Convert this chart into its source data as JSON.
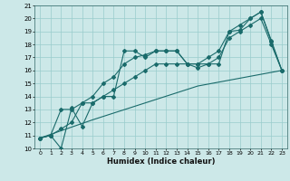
{
  "title": "",
  "xlabel": "Humidex (Indice chaleur)",
  "xlim": [
    -0.5,
    23.5
  ],
  "ylim": [
    10,
    21
  ],
  "xticks": [
    0,
    1,
    2,
    3,
    4,
    5,
    6,
    7,
    8,
    9,
    10,
    11,
    12,
    13,
    14,
    15,
    16,
    17,
    18,
    19,
    20,
    21,
    22,
    23
  ],
  "yticks": [
    10,
    11,
    12,
    13,
    14,
    15,
    16,
    17,
    18,
    19,
    20,
    21
  ],
  "bg_color": "#cce8e8",
  "grid_color": "#99cccc",
  "line_color": "#1a6b6b",
  "line1_x": [
    0,
    1,
    2,
    3,
    4,
    5,
    6,
    7,
    8,
    9,
    10,
    11,
    12,
    13,
    14,
    15,
    16,
    17,
    18,
    19,
    20,
    21,
    22,
    23
  ],
  "line1_y": [
    10.8,
    11.0,
    10.0,
    13.1,
    11.7,
    13.5,
    14.0,
    14.0,
    17.5,
    17.5,
    17.0,
    17.5,
    17.5,
    17.5,
    16.5,
    16.2,
    16.5,
    16.5,
    19.0,
    19.1,
    20.0,
    20.5,
    18.2,
    16.0
  ],
  "line2_x": [
    0,
    1,
    2,
    3,
    4,
    5,
    6,
    7,
    8,
    9,
    10,
    11,
    12,
    13,
    14,
    15,
    16,
    17,
    18,
    19,
    20,
    21,
    22,
    23
  ],
  "line2_y": [
    10.8,
    11.0,
    13.0,
    13.0,
    13.5,
    14.0,
    15.0,
    15.5,
    16.5,
    17.0,
    17.2,
    17.5,
    17.5,
    17.5,
    16.5,
    16.5,
    17.0,
    17.5,
    19.0,
    19.5,
    20.0,
    20.5,
    18.3,
    16.0
  ],
  "line3_x": [
    0,
    1,
    2,
    3,
    4,
    5,
    6,
    7,
    8,
    9,
    10,
    11,
    12,
    13,
    14,
    15,
    16,
    17,
    18,
    19,
    20,
    21,
    22,
    23
  ],
  "line3_y": [
    10.8,
    11.0,
    11.5,
    12.0,
    13.5,
    13.5,
    14.0,
    14.5,
    15.0,
    15.5,
    16.0,
    16.5,
    16.5,
    16.5,
    16.5,
    16.5,
    16.5,
    17.0,
    18.5,
    19.0,
    19.5,
    20.0,
    18.0,
    16.0
  ],
  "line4_x": [
    0,
    5,
    10,
    15,
    23
  ],
  "line4_y": [
    10.8,
    12.2,
    13.5,
    14.8,
    16.0
  ]
}
